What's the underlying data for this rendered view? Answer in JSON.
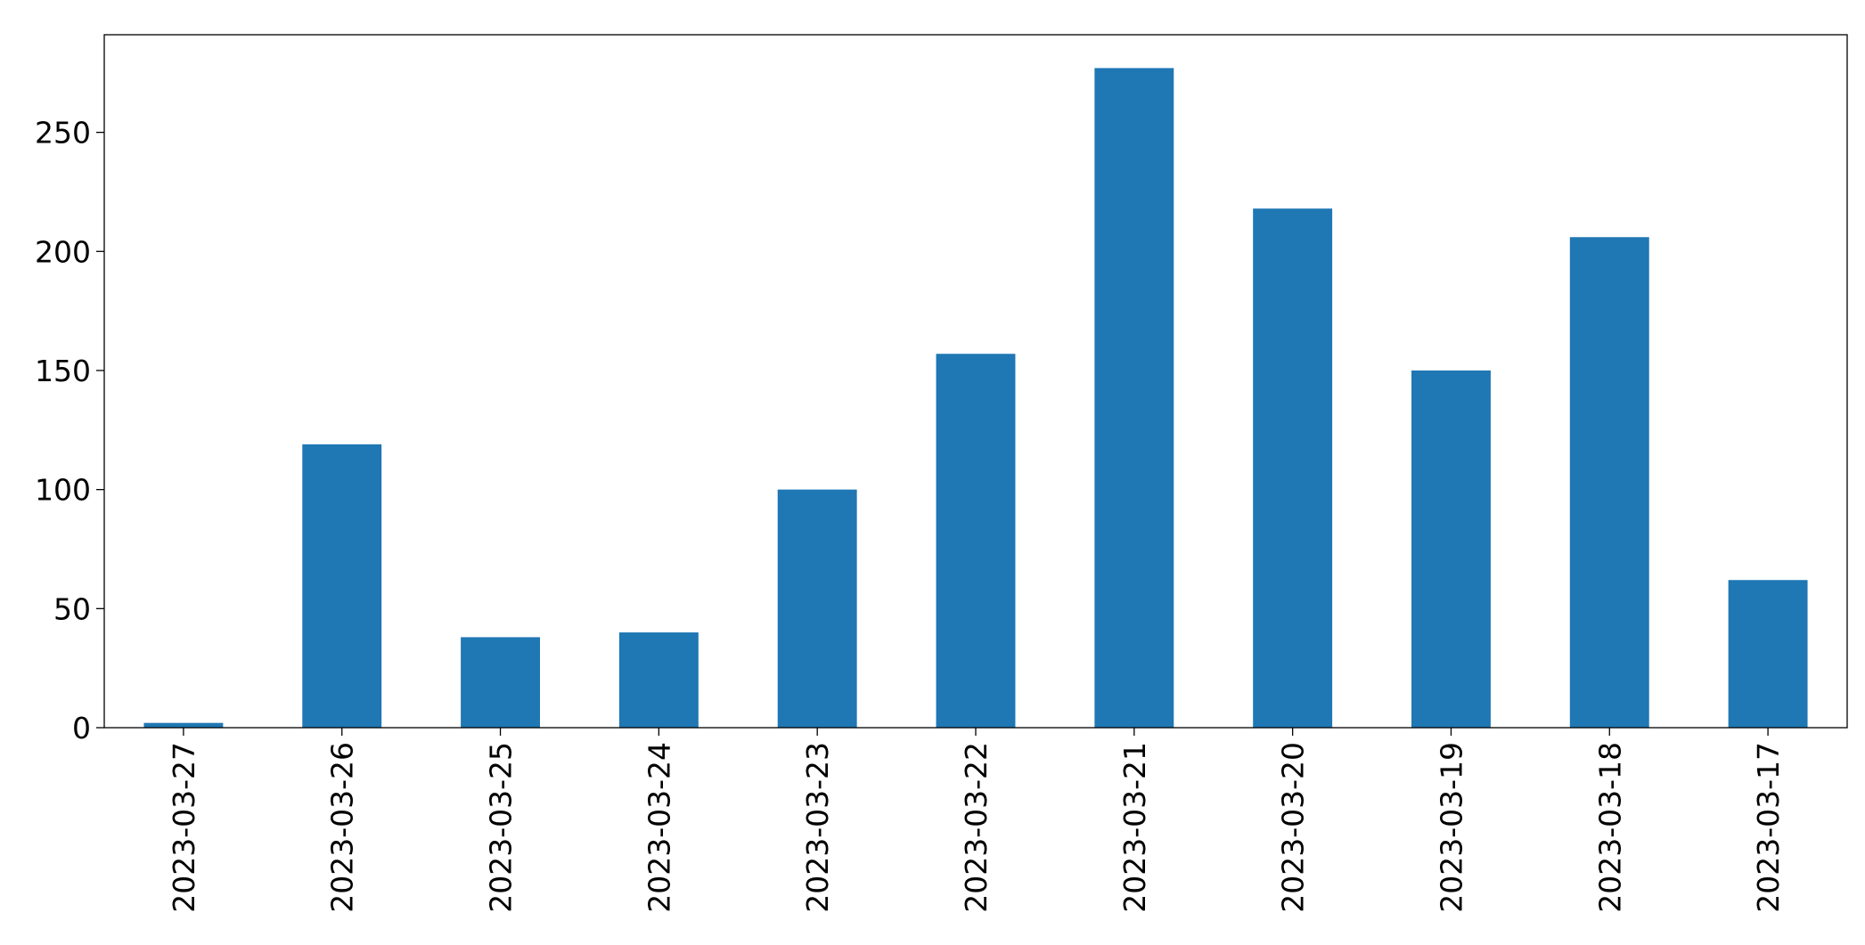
{
  "chart_data": {
    "type": "bar",
    "categories": [
      "2023-03-27",
      "2023-03-26",
      "2023-03-25",
      "2023-03-24",
      "2023-03-23",
      "2023-03-22",
      "2023-03-21",
      "2023-03-20",
      "2023-03-19",
      "2023-03-18",
      "2023-03-17"
    ],
    "values": [
      2,
      119,
      38,
      40,
      100,
      157,
      277,
      218,
      150,
      206,
      62
    ],
    "color": "#1f77b4",
    "ylim": [
      0,
      291
    ],
    "yticks": [
      0,
      50,
      100,
      150,
      200,
      250
    ],
    "grid": false
  }
}
